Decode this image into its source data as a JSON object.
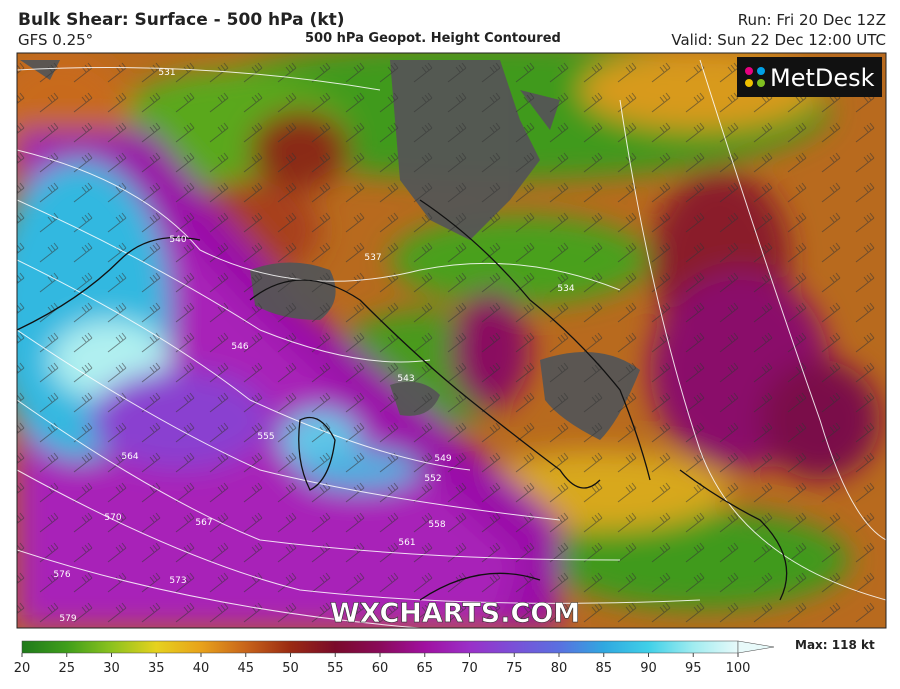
{
  "header": {
    "title": "Bulk Shear: Surface - 500 hPa (kt)",
    "model": "GFS 0.25°",
    "subtitle": "500 hPa Geopot. Height Contoured",
    "run": "Run: Fri 20 Dec 12Z",
    "valid": "Valid: Sun 22 Dec 12:00 UTC"
  },
  "map": {
    "brand": "MetDesk",
    "watermark": "WXCHARTS.COM",
    "contour_labels": [
      "531",
      "540",
      "537",
      "534",
      "546",
      "543",
      "555",
      "549",
      "552",
      "564",
      "558",
      "567",
      "570",
      "561",
      "573",
      "576",
      "579"
    ]
  },
  "colorbar": {
    "ticks": [
      20,
      25,
      30,
      35,
      40,
      45,
      50,
      55,
      60,
      65,
      70,
      75,
      80,
      85,
      90,
      95,
      100
    ],
    "colors": [
      "#1f7a1a",
      "#3f9e1a",
      "#8cc21e",
      "#e6d21e",
      "#e8a21a",
      "#c8641a",
      "#9a2a12",
      "#7a0a2a",
      "#8a0a5a",
      "#a010a0",
      "#9a30c8",
      "#7a50d8",
      "#5a70e0",
      "#30a8e0",
      "#40d0e8",
      "#a0ecf0",
      "#e8fafa"
    ],
    "max_label": "Max: 118 kt"
  }
}
